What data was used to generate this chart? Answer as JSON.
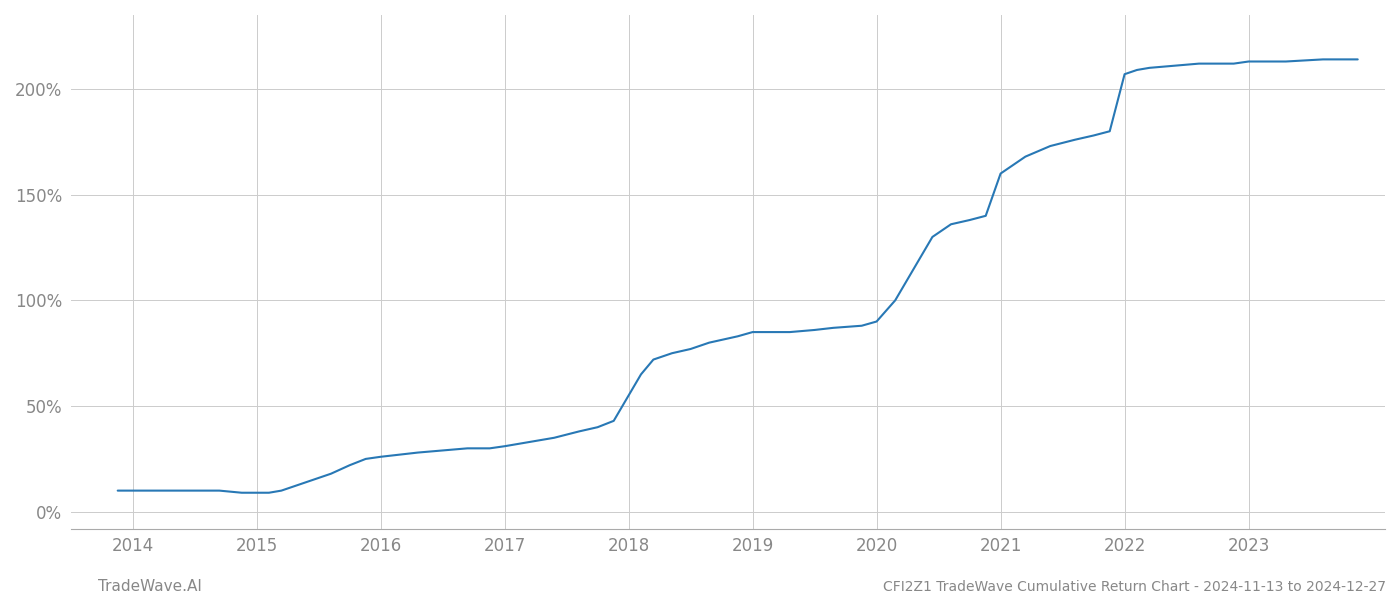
{
  "title": "CFI2Z1 TradeWave Cumulative Return Chart - 2024-11-13 to 2024-12-27",
  "watermark": "TradeWave.AI",
  "line_color": "#2878b5",
  "background_color": "#ffffff",
  "grid_color": "#cccccc",
  "x_values": [
    2013.88,
    2014.0,
    2014.1,
    2014.3,
    2014.5,
    2014.7,
    2014.88,
    2015.0,
    2015.1,
    2015.2,
    2015.4,
    2015.6,
    2015.75,
    2015.88,
    2016.0,
    2016.15,
    2016.3,
    2016.5,
    2016.7,
    2016.88,
    2017.0,
    2017.2,
    2017.4,
    2017.6,
    2017.75,
    2017.88,
    2018.0,
    2018.1,
    2018.2,
    2018.35,
    2018.5,
    2018.65,
    2018.88,
    2019.0,
    2019.15,
    2019.3,
    2019.5,
    2019.65,
    2019.88,
    2020.0,
    2020.15,
    2020.3,
    2020.45,
    2020.6,
    2020.75,
    2020.88,
    2021.0,
    2021.2,
    2021.4,
    2021.6,
    2021.75,
    2021.88,
    2022.0,
    2022.1,
    2022.2,
    2022.4,
    2022.6,
    2022.88,
    2023.0,
    2023.3,
    2023.6,
    2023.88
  ],
  "y_values": [
    10,
    10,
    10,
    10,
    10,
    10,
    9,
    9,
    9,
    10,
    14,
    18,
    22,
    25,
    26,
    27,
    28,
    29,
    30,
    30,
    31,
    33,
    35,
    38,
    40,
    43,
    55,
    65,
    72,
    75,
    77,
    80,
    83,
    85,
    85,
    85,
    86,
    87,
    88,
    90,
    100,
    115,
    130,
    136,
    138,
    140,
    160,
    168,
    173,
    176,
    178,
    180,
    207,
    209,
    210,
    211,
    212,
    212,
    213,
    213,
    214,
    214
  ],
  "xlim": [
    2013.5,
    2024.1
  ],
  "ylim": [
    -8,
    235
  ],
  "yticks": [
    0,
    50,
    100,
    150,
    200
  ],
  "ytick_labels": [
    "0%",
    "50%",
    "100%",
    "150%",
    "200%"
  ],
  "xticks": [
    2014,
    2015,
    2016,
    2017,
    2018,
    2019,
    2020,
    2021,
    2022,
    2023
  ],
  "xtick_labels": [
    "2014",
    "2015",
    "2016",
    "2017",
    "2018",
    "2019",
    "2020",
    "2021",
    "2022",
    "2023"
  ],
  "line_width": 1.5,
  "font_color": "#888888",
  "axis_font_size": 12,
  "watermark_font_size": 11,
  "title_font_size": 10
}
